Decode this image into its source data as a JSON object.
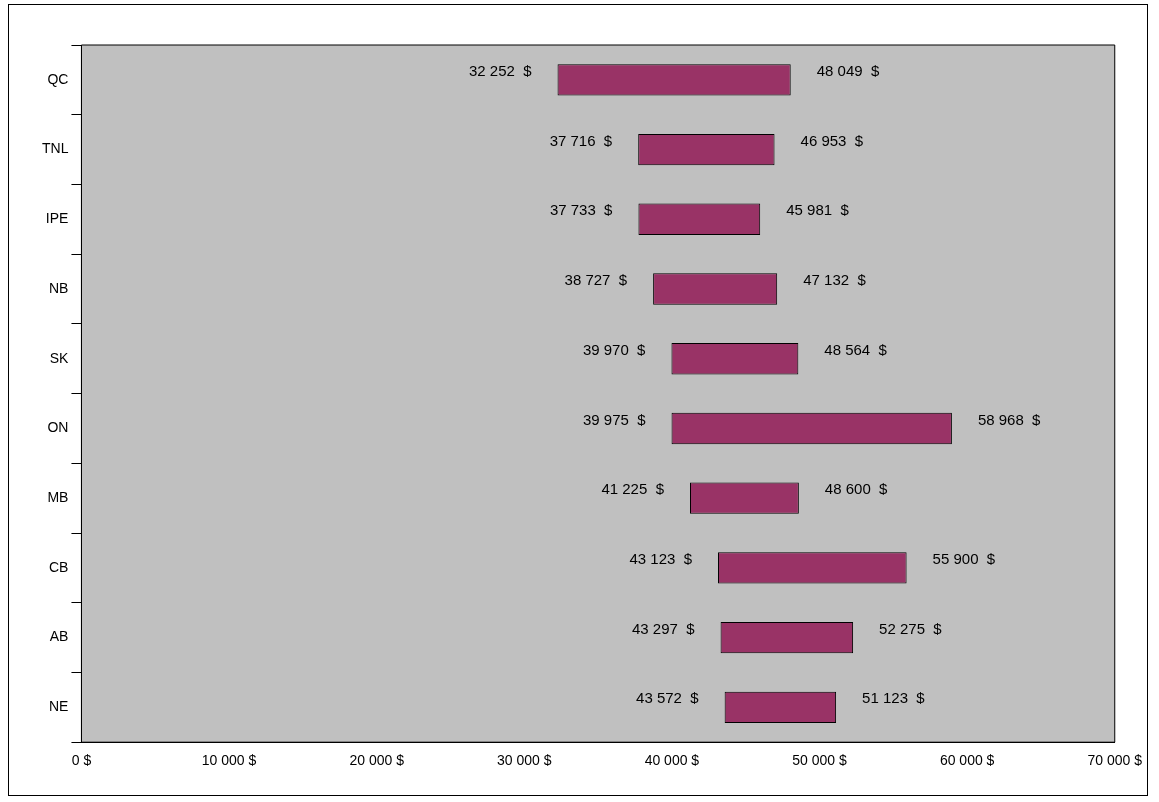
{
  "chart_data": {
    "type": "bar",
    "orientation": "horizontal",
    "categories": [
      "QC",
      "TNL",
      "IPE",
      "NB",
      "SK",
      "ON",
      "MB",
      "CB",
      "AB",
      "NE"
    ],
    "base": [
      32252,
      37716,
      37733,
      38727,
      39970,
      39975,
      41225,
      43123,
      43297,
      43572
    ],
    "values": [
      15797,
      9237,
      8248,
      8405,
      8594,
      18993,
      7375,
      12777,
      8978,
      7551
    ],
    "color": "#993366",
    "xlim": [
      0,
      70000
    ],
    "xticks": [
      {
        "value": 0,
        "label": "0 $"
      },
      {
        "value": 10000,
        "label": "10 000 $"
      },
      {
        "value": 20000,
        "label": "20 000 $"
      },
      {
        "value": 30000,
        "label": "30 000 $"
      },
      {
        "value": 40000,
        "label": "40 000 $"
      },
      {
        "value": 50000,
        "label": "50 000 $"
      },
      {
        "value": 60000,
        "label": "60 000 $"
      },
      {
        "value": 70000,
        "label": "70 000 $"
      }
    ],
    "grid": false,
    "legend": false,
    "annotations": [
      {
        "text": "32 252  $",
        "x": 32252,
        "y": "QC"
      },
      {
        "text": "48 049  $",
        "x": 48049,
        "y": "QC"
      },
      {
        "text": "37 716  $",
        "x": 37716,
        "y": "TNL"
      },
      {
        "text": "46 953  $",
        "x": 46953,
        "y": "TNL"
      },
      {
        "text": "37 733  $",
        "x": 37733,
        "y": "IPE"
      },
      {
        "text": "45 981  $",
        "x": 45981,
        "y": "IPE"
      },
      {
        "text": "38 727  $",
        "x": 38727,
        "y": "NB"
      },
      {
        "text": "47 132  $",
        "x": 47132,
        "y": "NB"
      },
      {
        "text": "39 970  $",
        "x": 39970,
        "y": "SK"
      },
      {
        "text": "48 564  $",
        "x": 48564,
        "y": "SK"
      },
      {
        "text": "39 975  $",
        "x": 39975,
        "y": "ON"
      },
      {
        "text": "58 968  $",
        "x": 58968,
        "y": "ON"
      },
      {
        "text": "41 225  $",
        "x": 41225,
        "y": "MB"
      },
      {
        "text": "48 600  $",
        "x": 48600,
        "y": "MB"
      },
      {
        "text": "43 123  $",
        "x": 43123,
        "y": "CB"
      },
      {
        "text": "55 900  $",
        "x": 55900,
        "y": "CB"
      },
      {
        "text": "43 297  $",
        "x": 43297,
        "y": "AB"
      },
      {
        "text": "52 275  $",
        "x": 52275,
        "y": "AB"
      },
      {
        "text": "43 572  $",
        "x": 43572,
        "y": "NE"
      },
      {
        "text": "51 123  $",
        "x": 51123,
        "y": "NE"
      }
    ]
  }
}
